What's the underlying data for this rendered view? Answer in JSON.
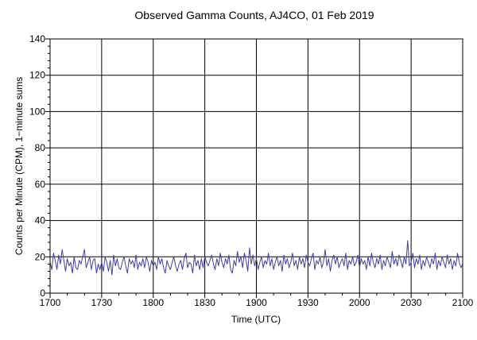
{
  "chart_data": {
    "type": "line",
    "title": "Observed Gamma Counts, AJ4CO, 01 Feb 2019",
    "xlabel": "Time (UTC)",
    "ylabel": "Counts per Minute (CPM), 1−minute sums",
    "xlim": [
      0,
      240
    ],
    "ylim": [
      0,
      140
    ],
    "x_ticks": [
      {
        "value": 0,
        "label": "1700"
      },
      {
        "value": 30,
        "label": "1730"
      },
      {
        "value": 60,
        "label": "1800"
      },
      {
        "value": 90,
        "label": "1830"
      },
      {
        "value": 120,
        "label": "1900"
      },
      {
        "value": 150,
        "label": "1930"
      },
      {
        "value": 180,
        "label": "2000"
      },
      {
        "value": 210,
        "label": "2030"
      },
      {
        "value": 240,
        "label": "2100"
      }
    ],
    "y_ticks": [
      0,
      20,
      40,
      60,
      80,
      100,
      120,
      140
    ],
    "grid": true,
    "colors": {
      "series": "#3f3fa0",
      "grid": "#000000"
    },
    "series": [
      {
        "values": [
          17,
          13,
          22,
          18,
          13,
          21,
          16,
          24,
          18,
          12,
          19,
          15,
          17,
          11,
          20,
          14,
          13,
          18,
          16,
          20,
          24,
          14,
          17,
          20,
          13,
          18,
          19,
          11,
          16,
          13,
          17,
          12,
          20,
          17,
          12,
          18,
          10,
          21,
          15,
          19,
          14,
          13,
          17,
          20,
          15,
          11,
          19,
          16,
          18,
          14,
          21,
          13,
          17,
          15,
          19,
          14,
          20,
          17,
          12,
          18,
          15,
          17,
          13,
          20,
          16,
          19,
          14,
          11,
          18,
          15,
          13,
          17,
          20,
          15,
          12,
          16,
          18,
          13,
          19,
          22,
          14,
          17,
          16,
          11,
          21,
          15,
          18,
          13,
          19,
          14,
          20,
          17,
          15,
          18,
          21,
          16,
          13,
          19,
          15,
          22,
          17,
          14,
          19,
          16,
          21,
          13,
          11,
          18,
          15,
          23,
          17,
          20,
          14,
          22,
          18,
          12,
          25,
          16,
          21,
          15,
          19,
          13,
          17,
          20,
          14,
          18,
          16,
          22,
          15,
          19,
          13,
          17,
          20,
          15,
          18,
          12,
          21,
          16,
          19,
          14,
          17,
          22,
          15,
          18,
          13,
          20,
          16,
          19,
          14,
          21,
          17,
          15,
          19,
          22,
          13,
          18,
          16,
          20,
          14,
          17,
          24,
          15,
          19,
          12,
          18,
          21,
          16,
          20,
          14,
          17,
          19,
          15,
          22,
          13,
          18,
          16,
          20,
          15,
          17,
          21,
          14,
          19,
          16,
          18,
          13,
          20,
          15,
          22,
          17,
          14,
          19,
          16,
          21,
          13,
          18,
          15,
          20,
          17,
          14,
          23,
          16,
          19,
          15,
          21,
          18,
          14,
          20,
          16,
          29,
          15,
          17,
          22,
          14,
          19,
          16,
          21,
          13,
          18,
          15,
          20,
          17,
          14,
          19,
          16,
          22,
          13,
          18,
          15,
          20,
          17,
          14,
          21,
          16,
          19,
          13,
          18,
          15,
          22,
          17,
          14,
          16
        ]
      }
    ]
  }
}
